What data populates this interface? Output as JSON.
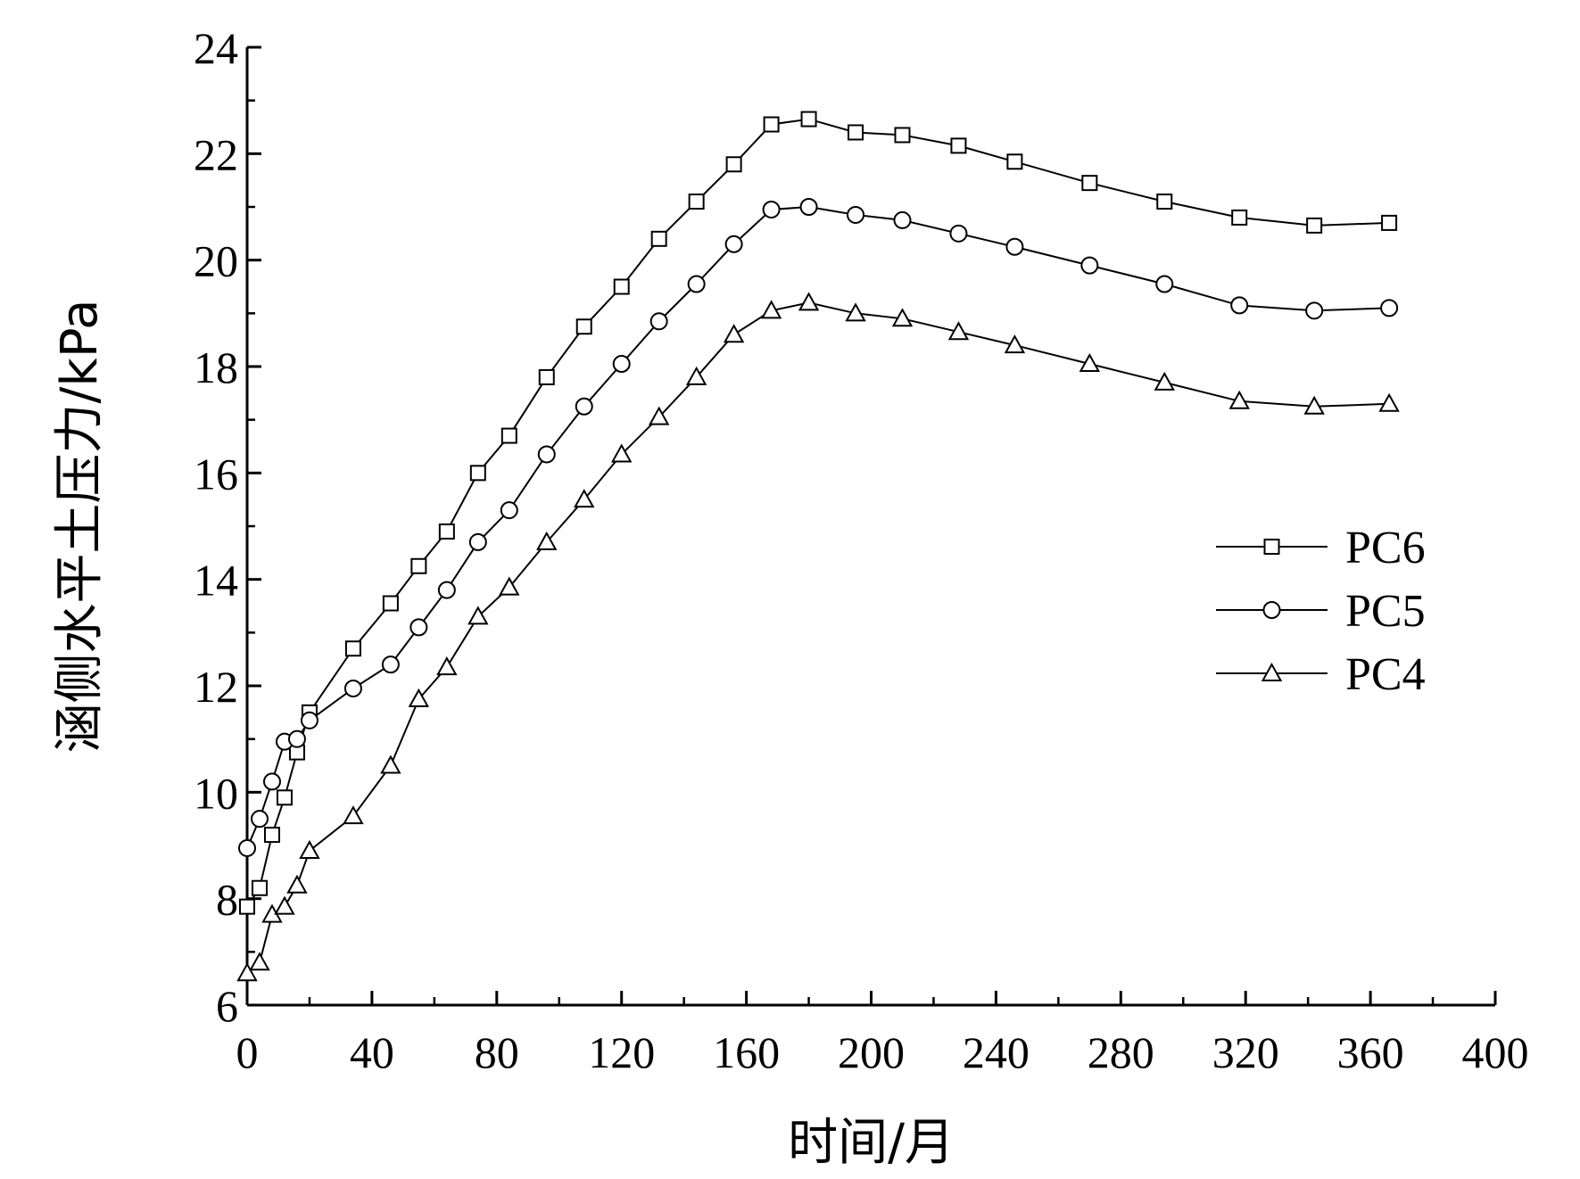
{
  "chart_data": {
    "type": "line",
    "title": "",
    "xlabel": "时间/月",
    "ylabel": "涵侧水平土压力/kPa",
    "xlim": [
      0,
      400
    ],
    "ylim": [
      6,
      24
    ],
    "xticks": [
      0,
      40,
      80,
      120,
      160,
      200,
      240,
      280,
      320,
      360,
      400
    ],
    "yticks": [
      6,
      8,
      10,
      12,
      14,
      16,
      18,
      20,
      22,
      24
    ],
    "x_tick_labels": [
      "0",
      "40",
      "80",
      "120",
      "160",
      "200",
      "240",
      "280",
      "320",
      "360",
      "400"
    ],
    "y_tick_labels": [
      "6",
      "8",
      "10",
      "12",
      "14",
      "16",
      "18",
      "20",
      "22",
      "24"
    ],
    "grid": false,
    "legend_position": "right",
    "series": [
      {
        "name": "PC6",
        "marker": "square",
        "points": [
          [
            0,
            7.85
          ],
          [
            4,
            8.2
          ],
          [
            8,
            9.2
          ],
          [
            12,
            9.9
          ],
          [
            16,
            10.75
          ],
          [
            20,
            11.5
          ],
          [
            34,
            12.7
          ],
          [
            46,
            13.55
          ],
          [
            55,
            14.25
          ],
          [
            64,
            14.9
          ],
          [
            74,
            16.0
          ],
          [
            84,
            16.7
          ],
          [
            96,
            17.8
          ],
          [
            108,
            18.75
          ],
          [
            120,
            19.5
          ],
          [
            132,
            20.4
          ],
          [
            144,
            21.1
          ],
          [
            156,
            21.8
          ],
          [
            168,
            22.55
          ],
          [
            180,
            22.65
          ],
          [
            195,
            22.4
          ],
          [
            210,
            22.35
          ],
          [
            228,
            22.15
          ],
          [
            246,
            21.85
          ],
          [
            270,
            21.45
          ],
          [
            294,
            21.1
          ],
          [
            318,
            20.8
          ],
          [
            342,
            20.65
          ],
          [
            366,
            20.7
          ]
        ]
      },
      {
        "name": "PC5",
        "marker": "circle",
        "points": [
          [
            0,
            8.95
          ],
          [
            4,
            9.5
          ],
          [
            8,
            10.2
          ],
          [
            12,
            10.95
          ],
          [
            16,
            11.0
          ],
          [
            20,
            11.35
          ],
          [
            34,
            11.95
          ],
          [
            46,
            12.4
          ],
          [
            55,
            13.1
          ],
          [
            64,
            13.8
          ],
          [
            74,
            14.7
          ],
          [
            84,
            15.3
          ],
          [
            96,
            16.35
          ],
          [
            108,
            17.25
          ],
          [
            120,
            18.05
          ],
          [
            132,
            18.85
          ],
          [
            144,
            19.55
          ],
          [
            156,
            20.3
          ],
          [
            168,
            20.95
          ],
          [
            180,
            21.0
          ],
          [
            195,
            20.85
          ],
          [
            210,
            20.75
          ],
          [
            228,
            20.5
          ],
          [
            246,
            20.25
          ],
          [
            270,
            19.9
          ],
          [
            294,
            19.55
          ],
          [
            318,
            19.15
          ],
          [
            342,
            19.05
          ],
          [
            366,
            19.1
          ]
        ]
      },
      {
        "name": "PC4",
        "marker": "triangle",
        "points": [
          [
            0,
            6.6
          ],
          [
            4,
            6.8
          ],
          [
            8,
            7.7
          ],
          [
            12,
            7.85
          ],
          [
            16,
            8.25
          ],
          [
            20,
            8.9
          ],
          [
            34,
            9.55
          ],
          [
            46,
            10.5
          ],
          [
            55,
            11.75
          ],
          [
            64,
            12.35
          ],
          [
            74,
            13.3
          ],
          [
            84,
            13.85
          ],
          [
            96,
            14.7
          ],
          [
            108,
            15.5
          ],
          [
            120,
            16.35
          ],
          [
            132,
            17.05
          ],
          [
            144,
            17.8
          ],
          [
            156,
            18.6
          ],
          [
            168,
            19.05
          ],
          [
            180,
            19.2
          ],
          [
            195,
            19.0
          ],
          [
            210,
            18.9
          ],
          [
            228,
            18.65
          ],
          [
            246,
            18.4
          ],
          [
            270,
            18.05
          ],
          [
            294,
            17.7
          ],
          [
            318,
            17.35
          ],
          [
            342,
            17.25
          ],
          [
            366,
            17.3
          ]
        ]
      }
    ]
  }
}
